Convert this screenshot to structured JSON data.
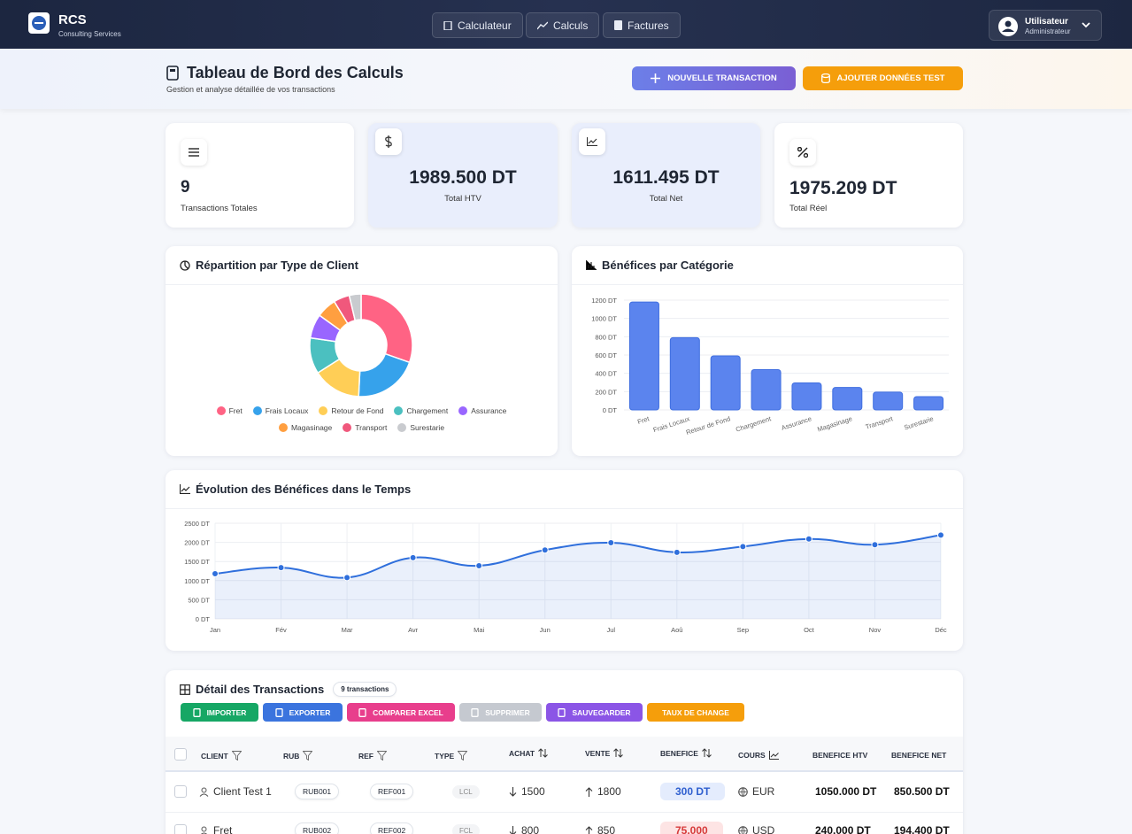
{
  "header": {
    "brand": "RCS",
    "brand_sub": "Consulting Services",
    "nav": [
      "Calculateur",
      "Calculs",
      "Factures"
    ],
    "user_name": "Utilisateur",
    "user_role": "Administrateur"
  },
  "page": {
    "title": "Tableau de Bord des Calculs",
    "subtitle": "Gestion et analyse détaillée de vos transactions",
    "actions": [
      "NOUVELLE TRANSACTION",
      "AJOUTER DONNÉES TEST"
    ]
  },
  "stats": [
    {
      "value": "9",
      "label": "Transactions Totales"
    },
    {
      "value": "1989.500 DT",
      "label": "Total HTV"
    },
    {
      "value": "1611.495 DT",
      "label": "Total Net"
    },
    {
      "value": "1975.209 DT",
      "label": "Total Réel"
    }
  ],
  "chart_data": [
    {
      "type": "pie",
      "title": "Répartition par Type de Client",
      "categories": [
        "Fret",
        "Frais Locaux",
        "Retour de Fond",
        "Chargement",
        "Assurance",
        "Magasinage",
        "Transport",
        "Surestarie"
      ],
      "values": [
        1180,
        790,
        590,
        440,
        295,
        245,
        195,
        145
      ],
      "colors": [
        "#ff6384",
        "#36a2eb",
        "#ffce56",
        "#4bc0c0",
        "#9966ff",
        "#ff9f40",
        "#f0587c",
        "#c9cbcf"
      ],
      "legend": "bottom"
    },
    {
      "type": "bar",
      "title": "Bénéfices par Catégorie",
      "categories": [
        "Fret",
        "Frais Locaux",
        "Retour de Fond",
        "Chargement",
        "Assurance",
        "Magasinage",
        "Transport",
        "Surestarie"
      ],
      "values": [
        1180,
        790,
        590,
        440,
        295,
        245,
        195,
        145
      ],
      "color": "#5b84ee",
      "ylim": [
        0,
        1200
      ],
      "yticks": [
        {
          "value": 0,
          "label": "0 DT"
        },
        {
          "value": 200,
          "label": "200 DT"
        },
        {
          "value": 400,
          "label": "400 DT"
        },
        {
          "value": 600,
          "label": "600 DT"
        },
        {
          "value": 800,
          "label": "800 DT"
        },
        {
          "value": 1000,
          "label": "1000 DT"
        },
        {
          "value": 1200,
          "label": "1200 DT"
        }
      ],
      "grid": true
    },
    {
      "type": "line",
      "title": "Évolution des Bénéfices dans le Temps",
      "categories": [
        "Jan",
        "Fév",
        "Mar",
        "Avr",
        "Mai",
        "Jun",
        "Jul",
        "Aoû",
        "Sep",
        "Oct",
        "Nov",
        "Déc"
      ],
      "values": [
        1180,
        1340,
        1080,
        1600,
        1390,
        1800,
        1990,
        1740,
        1890,
        2090,
        1940,
        2190
      ],
      "color": "#2f6fdc",
      "ylim": [
        0,
        2500
      ],
      "yticks": [
        {
          "value": 0,
          "label": "0 DT"
        },
        {
          "value": 500,
          "label": "500 DT"
        },
        {
          "value": 1000,
          "label": "1000 DT"
        },
        {
          "value": 1500,
          "label": "1500 DT"
        },
        {
          "value": 2000,
          "label": "2000 DT"
        },
        {
          "value": 2500,
          "label": "2500 DT"
        }
      ],
      "grid": true
    }
  ],
  "table": {
    "title": "Détail des Transactions",
    "count": "9 transactions",
    "toolbar": [
      "IMPORTER",
      "EXPORTER",
      "COMPARER EXCEL",
      "SUPPRIMER",
      "SAUVEGARDER",
      "TAUX DE CHANGE"
    ],
    "columns": [
      "CLIENT",
      "RUB",
      "REF",
      "TYPE",
      "ACHAT",
      "VENTE",
      "BENEFICE",
      "COURS",
      "BENEFICE HTV",
      "BENEFICE NET"
    ],
    "rows": [
      [
        "Client Test 1",
        "RUB001",
        "REF001",
        "LCL",
        1500,
        1800,
        "300 DT",
        "EUR",
        "1050.000 DT",
        "850.500 DT"
      ],
      [
        "Fret",
        "RUB002",
        "REF002",
        "FCL",
        800,
        850,
        "75.000",
        "USD",
        "240.000 DT",
        "194.400 DT"
      ]
    ]
  }
}
